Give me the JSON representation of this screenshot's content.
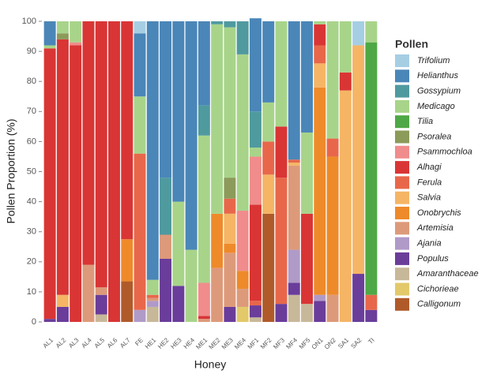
{
  "chart_data": {
    "type": "stacked-bar",
    "ylabel": "Pollen Proportion (%)",
    "xlabel": "Honey",
    "legend_title": "Pollen",
    "legend": "right",
    "categories": [
      "AL1",
      "AL2",
      "AL3",
      "AL4",
      "AL5",
      "AL6",
      "AL7",
      "FE",
      "HE1",
      "HE2",
      "HE3",
      "HE4",
      "ME1",
      "ME2",
      "ME3",
      "ME4",
      "MF1",
      "MF2",
      "MF3",
      "MF4",
      "MF5",
      "ON1",
      "ON2",
      "SA1",
      "SA2",
      "TI"
    ],
    "ylim": [
      0,
      100
    ],
    "yticks": [
      0,
      10,
      20,
      30,
      40,
      50,
      60,
      70,
      80,
      90,
      100
    ],
    "series": [
      {
        "name": "Trifolium",
        "color": "#a6cee3",
        "values": [
          0,
          0,
          0,
          0,
          0,
          0,
          0,
          4,
          0,
          0,
          0,
          0,
          0,
          0,
          0,
          0,
          0,
          0,
          0,
          0,
          0,
          0,
          0,
          0,
          8,
          0
        ]
      },
      {
        "name": "Helianthus",
        "color": "#4a86b8",
        "values": [
          8,
          0,
          0,
          0,
          0,
          0,
          0,
          21,
          86,
          52,
          60,
          76,
          28,
          0,
          0,
          0,
          31,
          27,
          0,
          46,
          37,
          0,
          0,
          0,
          0,
          0
        ]
      },
      {
        "name": "Gossypium",
        "color": "#4f9a9f",
        "values": [
          0,
          0,
          0,
          0,
          0,
          0,
          0,
          0,
          0,
          19,
          0,
          0,
          10,
          1,
          2,
          11,
          12,
          0,
          0,
          0,
          0,
          0,
          0,
          0,
          0,
          0
        ]
      },
      {
        "name": "Medicago",
        "color": "#a8d48a",
        "values": [
          1,
          4,
          7,
          0,
          0,
          0,
          0,
          19,
          5,
          0,
          28,
          24,
          49,
          63,
          50,
          52,
          3,
          13,
          35,
          0,
          27,
          1,
          39,
          17,
          0,
          7
        ]
      },
      {
        "name": "Tilia",
        "color": "#4ea845",
        "values": [
          0,
          0,
          0,
          0,
          0,
          0,
          0,
          0,
          0,
          0,
          0,
          0,
          0,
          0,
          0,
          0,
          0,
          0,
          0,
          0,
          0,
          0,
          0,
          0,
          0,
          84
        ]
      },
      {
        "name": "Psoralea",
        "color": "#8c9a5a",
        "values": [
          0,
          2,
          0,
          0,
          0,
          0,
          0,
          0,
          0,
          0,
          0,
          0,
          0,
          0,
          7,
          0,
          0,
          0,
          0,
          0,
          0,
          0,
          0,
          0,
          0,
          0
        ]
      },
      {
        "name": "Psammochloa",
        "color": "#f08c8c",
        "values": [
          0,
          0,
          1,
          0,
          0,
          0,
          0,
          0,
          0,
          0,
          0,
          0,
          11,
          0,
          0,
          20,
          16,
          0,
          0,
          0,
          0,
          0,
          0,
          0,
          0,
          0
        ]
      },
      {
        "name": "Alhagi",
        "color": "#d93535",
        "values": [
          90,
          85,
          92,
          81,
          88.5,
          100,
          72.5,
          0,
          0,
          0,
          0,
          0,
          1,
          0,
          0,
          0,
          32,
          0,
          17,
          0,
          30,
          7,
          0,
          6,
          0,
          0
        ]
      },
      {
        "name": "Ferula",
        "color": "#e8674a",
        "values": [
          0,
          0,
          0,
          0,
          0,
          0,
          0,
          52,
          1,
          0,
          0,
          0,
          0,
          0,
          5,
          0,
          1.5,
          11,
          42,
          1,
          0,
          6,
          6,
          0,
          0,
          5
        ]
      },
      {
        "name": "Salvia",
        "color": "#f5b565",
        "values": [
          0,
          4,
          0,
          0,
          0,
          0,
          0,
          0,
          0,
          0,
          0,
          0,
          0,
          0,
          10,
          0,
          0,
          13,
          0,
          1,
          0,
          8,
          0,
          77,
          76,
          0
        ]
      },
      {
        "name": "Onobrychis",
        "color": "#ee8a2a",
        "values": [
          0,
          0,
          0,
          0,
          0,
          0,
          14,
          0,
          0,
          0,
          0,
          0,
          0,
          18,
          3,
          6,
          0,
          0,
          0,
          0,
          0,
          69,
          46,
          0,
          0,
          0
        ]
      },
      {
        "name": "Artemisia",
        "color": "#dd9a7a",
        "values": [
          0,
          0,
          0,
          19,
          2.5,
          0,
          0,
          0,
          1,
          8,
          0,
          0,
          1,
          18,
          18,
          6,
          0,
          0,
          0,
          28,
          0,
          0,
          9,
          0,
          0,
          0
        ]
      },
      {
        "name": "Ajania",
        "color": "#b09ac8",
        "values": [
          0,
          0,
          0,
          0,
          0,
          0,
          0,
          4,
          2,
          0,
          0,
          0,
          0,
          0,
          0,
          0,
          0,
          0,
          0,
          11,
          0,
          2,
          0,
          0,
          0,
          0
        ]
      },
      {
        "name": "Populus",
        "color": "#6a3d9a",
        "values": [
          1,
          5,
          0,
          0,
          6.5,
          0,
          0,
          0,
          0,
          21,
          12,
          0,
          0,
          0,
          5,
          0,
          4,
          0,
          6,
          4,
          0,
          7,
          0,
          0,
          16,
          4
        ]
      },
      {
        "name": "Amaranthaceae",
        "color": "#c8b89a",
        "values": [
          0,
          0,
          0,
          0,
          2.5,
          0,
          0,
          0,
          5,
          0,
          0,
          0,
          0,
          0,
          0,
          0,
          1.5,
          0,
          0,
          9,
          6,
          0,
          0,
          0,
          0,
          0
        ]
      },
      {
        "name": "Cichorieae",
        "color": "#e3c96a",
        "values": [
          0,
          0,
          0,
          0,
          0,
          0,
          0,
          0,
          0,
          0,
          0,
          0,
          0,
          0,
          0,
          5,
          0,
          0,
          0,
          0,
          0,
          0,
          0,
          0,
          0,
          0
        ]
      },
      {
        "name": "Calligonum",
        "color": "#b05a2a",
        "values": [
          0,
          0,
          0,
          0,
          0,
          0,
          13.5,
          0,
          0,
          0,
          0,
          0,
          0,
          0,
          0,
          0,
          0,
          36,
          0,
          0,
          0,
          0,
          0,
          0,
          0,
          0
        ]
      }
    ]
  }
}
